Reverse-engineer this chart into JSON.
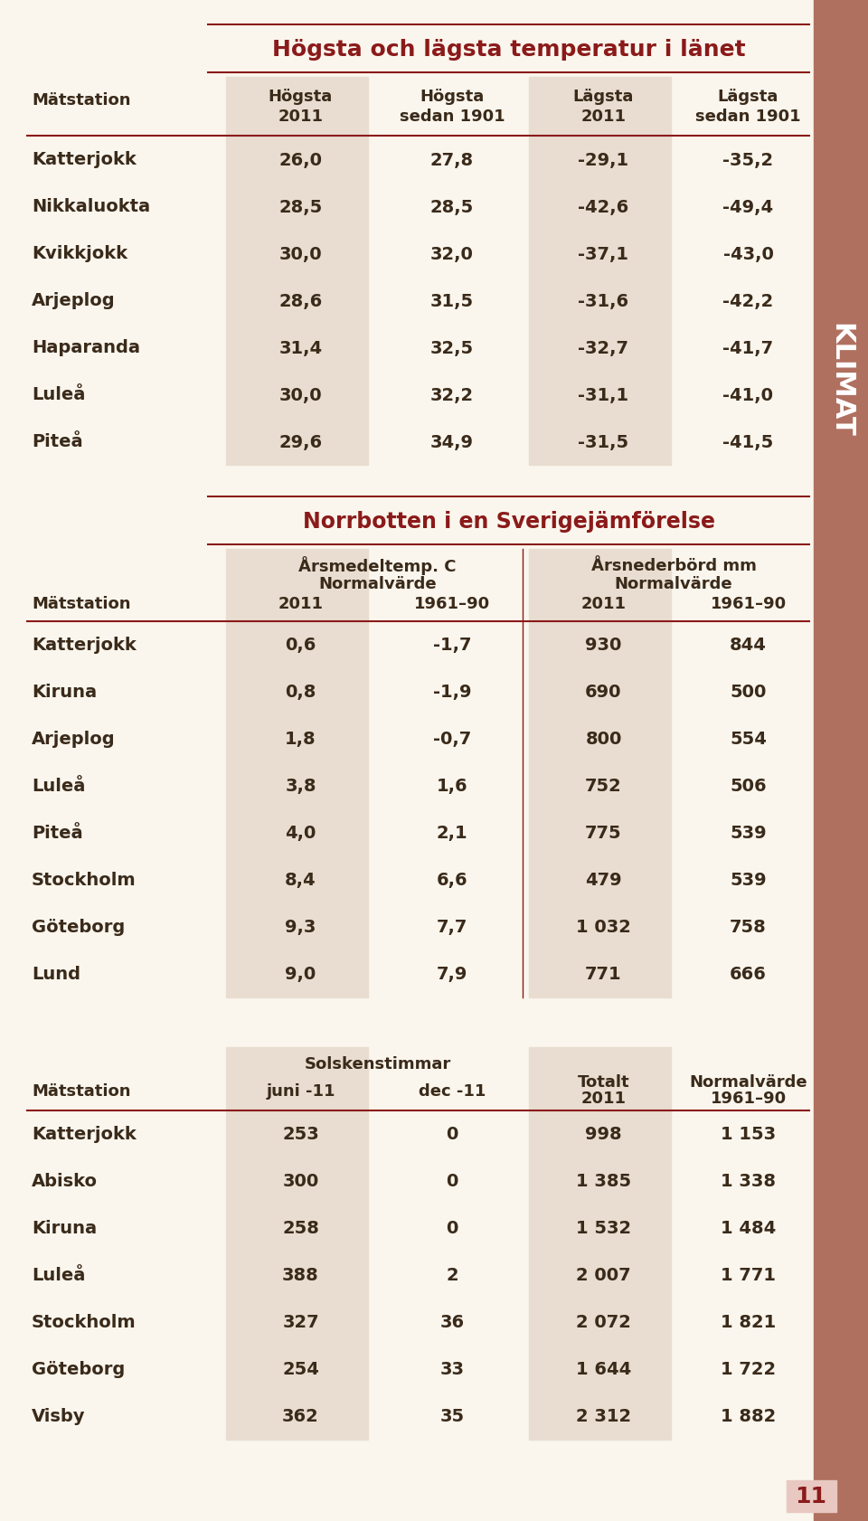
{
  "bg_color": "#faf6ed",
  "text_color": "#3a2a1a",
  "header_color": "#8b1a1a",
  "sidebar_color": "#b07060",
  "highlight_col_color": "#e8ddd0",
  "line_color": "#8b1a1a",
  "title1": "Högsta och lägsta temperatur i länet",
  "table1_col_line1": [
    "",
    "Högsta",
    "Högsta",
    "Lägsta",
    "Lägsta"
  ],
  "table1_col_line2": [
    "Mätstation",
    "2011",
    "sedan 1901",
    "2011",
    "sedan 1901"
  ],
  "table1_rows": [
    [
      "Katterjokk",
      "26,0",
      "27,8",
      "-29,1",
      "-35,2"
    ],
    [
      "Nikkaluokta",
      "28,5",
      "28,5",
      "-42,6",
      "-49,4"
    ],
    [
      "Kvikkjokk",
      "30,0",
      "32,0",
      "-37,1",
      "-43,0"
    ],
    [
      "Arjeplog",
      "28,6",
      "31,5",
      "-31,6",
      "-42,2"
    ],
    [
      "Haparanda",
      "31,4",
      "32,5",
      "-32,7",
      "-41,7"
    ],
    [
      "Luleå",
      "30,0",
      "32,2",
      "-31,1",
      "-41,0"
    ],
    [
      "Piteå",
      "29,6",
      "34,9",
      "-31,5",
      "-41,5"
    ]
  ],
  "title2": "Norrbotten i en Sverigejämförelse",
  "table2_grp1": "Årsmedeltemp. C",
  "table2_grp1b": "Normalvärde",
  "table2_grp2": "Årsnederbörd mm",
  "table2_grp2b": "Normalvärde",
  "table2_col_labels": [
    "Mätstation",
    "2011",
    "1961–90",
    "2011",
    "1961–90"
  ],
  "table2_rows": [
    [
      "Katterjokk",
      "0,6",
      "-1,7",
      "930",
      "844"
    ],
    [
      "Kiruna",
      "0,8",
      "-1,9",
      "690",
      "500"
    ],
    [
      "Arjeplog",
      "1,8",
      "-0,7",
      "800",
      "554"
    ],
    [
      "Luleå",
      "3,8",
      "1,6",
      "752",
      "506"
    ],
    [
      "Piteå",
      "4,0",
      "2,1",
      "775",
      "539"
    ],
    [
      "Stockholm",
      "8,4",
      "6,6",
      "479",
      "539"
    ],
    [
      "Göteborg",
      "9,3",
      "7,7",
      "1 032",
      "758"
    ],
    [
      "Lund",
      "9,0",
      "7,9",
      "771",
      "666"
    ]
  ],
  "table3_grp1": "Solskenstimmar",
  "table3_col_labels": [
    "Mätstation",
    "juni -11",
    "dec -11",
    "Totalt",
    "Normalvärde"
  ],
  "table3_col_labels2": [
    "",
    "",
    "",
    "2011",
    "1961–90"
  ],
  "table3_rows": [
    [
      "Katterjokk",
      "253",
      "0",
      "998",
      "1 153"
    ],
    [
      "Abisko",
      "300",
      "0",
      "1 385",
      "1 338"
    ],
    [
      "Kiruna",
      "258",
      "0",
      "1 532",
      "1 484"
    ],
    [
      "Luleå",
      "388",
      "2",
      "2 007",
      "1 771"
    ],
    [
      "Stockholm",
      "327",
      "36",
      "2 072",
      "1 821"
    ],
    [
      "Göteborg",
      "254",
      "33",
      "1 644",
      "1 722"
    ],
    [
      "Visby",
      "362",
      "35",
      "2 312",
      "1 882"
    ]
  ],
  "sidebar_text": "KLIMAT",
  "page_number": "11"
}
